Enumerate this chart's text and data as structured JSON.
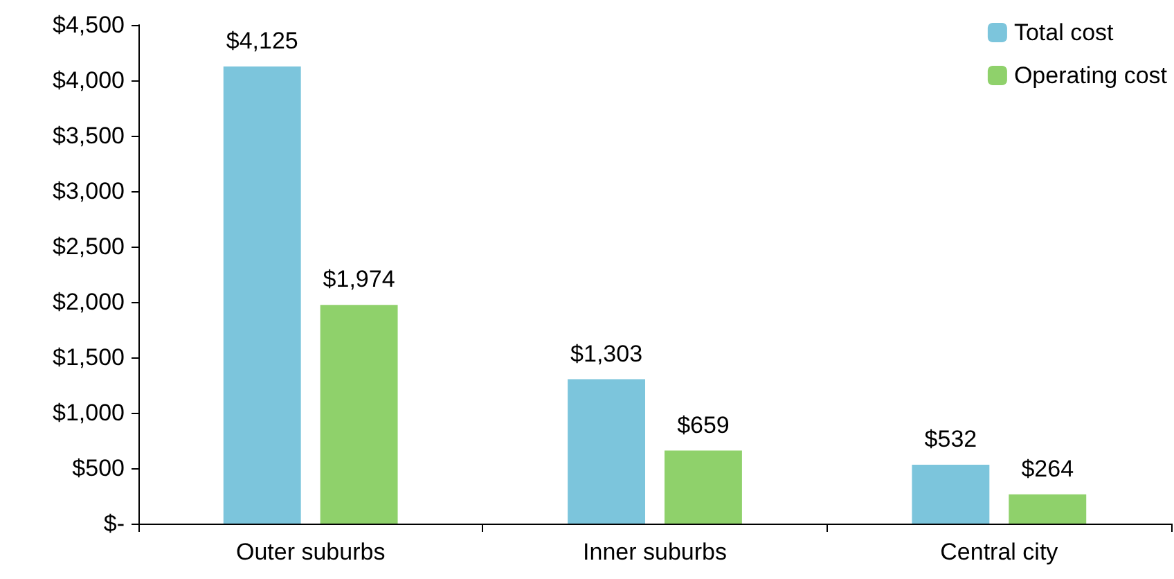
{
  "chart_data": {
    "type": "bar",
    "categories": [
      "Outer suburbs",
      "Inner suburbs",
      "Central city"
    ],
    "series": [
      {
        "name": "Total cost",
        "color": "#7cc5dc",
        "values": [
          4125,
          1303,
          532
        ],
        "value_labels": [
          "$4,125",
          "$1,303",
          "$532"
        ]
      },
      {
        "name": "Operating cost",
        "color": "#8fd16b",
        "values": [
          1974,
          659,
          264
        ],
        "value_labels": [
          "$1,974",
          "$659",
          "$264"
        ]
      }
    ],
    "ylim": [
      0,
      4500
    ],
    "yticks": [
      {
        "value": 0,
        "label": "$-"
      },
      {
        "value": 500,
        "label": "$500"
      },
      {
        "value": 1000,
        "label": "$1,000"
      },
      {
        "value": 1500,
        "label": "$1,500"
      },
      {
        "value": 2000,
        "label": "$2,000"
      },
      {
        "value": 2500,
        "label": "$2,500"
      },
      {
        "value": 3000,
        "label": "$3,000"
      },
      {
        "value": 3500,
        "label": "$3,500"
      },
      {
        "value": 4000,
        "label": "$4,000"
      },
      {
        "value": 4500,
        "label": "$4,500"
      }
    ],
    "grid": false,
    "legend": "top right"
  }
}
